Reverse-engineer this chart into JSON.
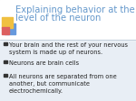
{
  "title_line1": "Explaining behavior at the",
  "title_line2": "level of the neuron",
  "title_color": "#6699CC",
  "background_color": "#E8EEF5",
  "slide_bg": "#D6E0EE",
  "bullet_color": "#222222",
  "bullet_square_color": "#333333",
  "bullets": [
    "Your brain and the rest of your nervous\nsystem is made up of neurons.",
    "Neurons are brain cells",
    "All neurons are separated from one\nanother, but communicate\nelectrochemically."
  ],
  "icon_yellow": "#F0C040",
  "icon_red": "#DD6060",
  "icon_blue": "#6699DD",
  "title_fs": 7.2,
  "bullet_fs": 4.8
}
